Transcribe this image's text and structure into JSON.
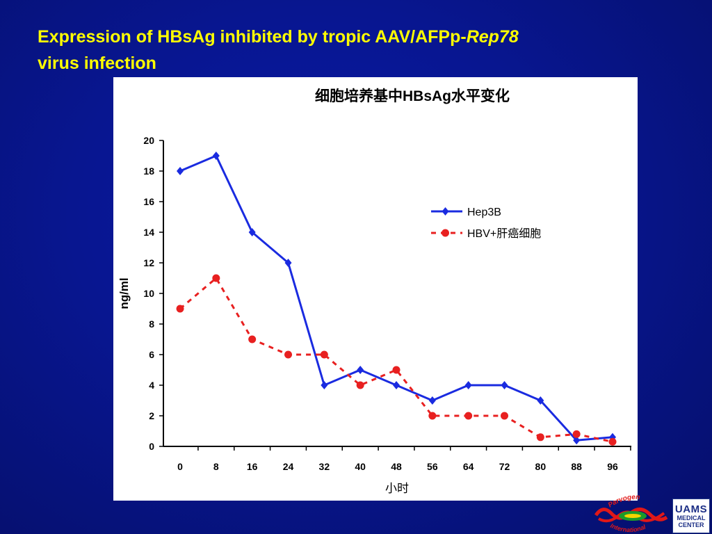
{
  "slide": {
    "title_line1_plain": "Expression of HBsAg inhibited by tropic AAV/AFPp-",
    "title_line1_italic": "Rep78",
    "title_line2": "virus infection"
  },
  "chart_data": {
    "type": "line",
    "title": "细胞培养基中HBsAg水平变化",
    "xlabel": "小时",
    "ylabel": "ng/ml",
    "categories": [
      "0",
      "8",
      "16",
      "24",
      "32",
      "40",
      "48",
      "56",
      "64",
      "72",
      "80",
      "88",
      "96"
    ],
    "x": [
      0,
      8,
      16,
      24,
      32,
      40,
      48,
      56,
      64,
      72,
      80,
      88,
      96
    ],
    "ylim": [
      0,
      20
    ],
    "yticks": [
      "0",
      "2",
      "4",
      "6",
      "8",
      "10",
      "12",
      "14",
      "16",
      "18",
      "20"
    ],
    "grid": false,
    "legend_position": "top-right",
    "series": [
      {
        "name": "Hep3B",
        "color": "#1a2be0",
        "style": "solid",
        "marker": "diamond",
        "values": [
          18,
          19,
          14,
          12,
          4,
          5,
          4,
          3,
          4,
          4,
          3,
          0.4,
          0.6
        ]
      },
      {
        "name": "HBV+肝癌细胞",
        "color": "#e82020",
        "style": "dashed",
        "marker": "circle",
        "values": [
          9,
          11,
          7,
          6,
          6,
          4,
          5,
          2,
          2,
          2,
          0.6,
          0.8,
          0.3
        ]
      }
    ]
  },
  "logos": {
    "parvogen_top": "Parvogen",
    "parvogen_bottom": "International",
    "uams_line1": "UAMS",
    "uams_line2": "MEDICAL",
    "uams_line3": "CENTER"
  }
}
